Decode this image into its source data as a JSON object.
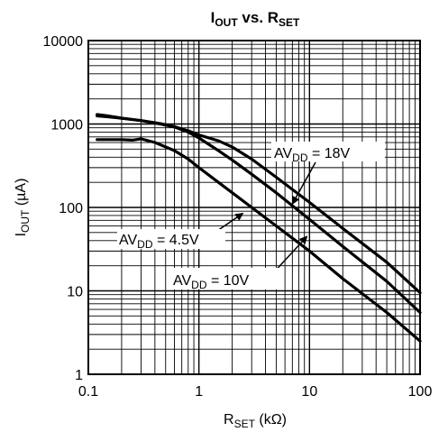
{
  "chart_data": {
    "type": "line",
    "title": {
      "main": "I",
      "sub1": "OUT",
      "mid": " vs. R",
      "sub2": "SET"
    },
    "xlabel": {
      "main": "R",
      "sub": "SET",
      "unit": " (kΩ)"
    },
    "ylabel": {
      "main": "I",
      "sub": "OUT",
      "unit": " (µA)"
    },
    "x_scale": "log",
    "y_scale": "log",
    "xlim": [
      0.1,
      100
    ],
    "ylim": [
      1,
      10000
    ],
    "x_ticks": [
      {
        "value": 0.1,
        "label": "0.1"
      },
      {
        "value": 1,
        "label": "1"
      },
      {
        "value": 10,
        "label": "10"
      },
      {
        "value": 100,
        "label": "100"
      }
    ],
    "y_ticks": [
      {
        "value": 1,
        "label": "1"
      },
      {
        "value": 10,
        "label": "10"
      },
      {
        "value": 100,
        "label": "100"
      },
      {
        "value": 1000,
        "label": "1000"
      },
      {
        "value": 10000,
        "label": "10000"
      }
    ],
    "grid": true,
    "series": [
      {
        "id": "avdd-18v",
        "label": {
          "main": "AV",
          "sub": "DD",
          "rest": " = 18V"
        },
        "label_arrow_target": [
          7.0,
          110
        ],
        "x": [
          0.12,
          0.15,
          0.2,
          0.3,
          0.45,
          0.6,
          0.8,
          1.0,
          1.5,
          2.0,
          3.0,
          5.0,
          10,
          20,
          50,
          100
        ],
        "y": [
          1250,
          1220,
          1170,
          1100,
          1010,
          930,
          830,
          740,
          630,
          530,
          380,
          230,
          115,
          56,
          22,
          9.5
        ]
      },
      {
        "id": "avdd-10v",
        "label": {
          "main": "AV",
          "sub": "DD",
          "rest": " = 10V"
        },
        "label_arrow_target": [
          9.5,
          45
        ],
        "x": [
          0.12,
          0.15,
          0.2,
          0.3,
          0.45,
          0.6,
          0.8,
          1.0,
          1.5,
          2.0,
          3.0,
          5.0,
          10,
          20,
          50,
          100
        ],
        "y": [
          1300,
          1250,
          1180,
          1100,
          1000,
          920,
          800,
          680,
          480,
          370,
          250,
          150,
          72,
          34,
          13,
          5.5
        ]
      },
      {
        "id": "avdd-4-5v",
        "label": {
          "main": "AV",
          "sub": "DD",
          "rest": " = 4.5V"
        },
        "label_arrow_target": [
          2.5,
          85
        ],
        "x": [
          0.12,
          0.15,
          0.2,
          0.25,
          0.3,
          0.4,
          0.6,
          0.8,
          1.0,
          1.5,
          2.0,
          3.0,
          5.0,
          10,
          20,
          50,
          100
        ],
        "y": [
          650,
          650,
          650,
          640,
          665,
          600,
          480,
          380,
          300,
          200,
          150,
          100,
          60,
          30,
          14,
          5.5,
          2.5
        ]
      }
    ]
  }
}
